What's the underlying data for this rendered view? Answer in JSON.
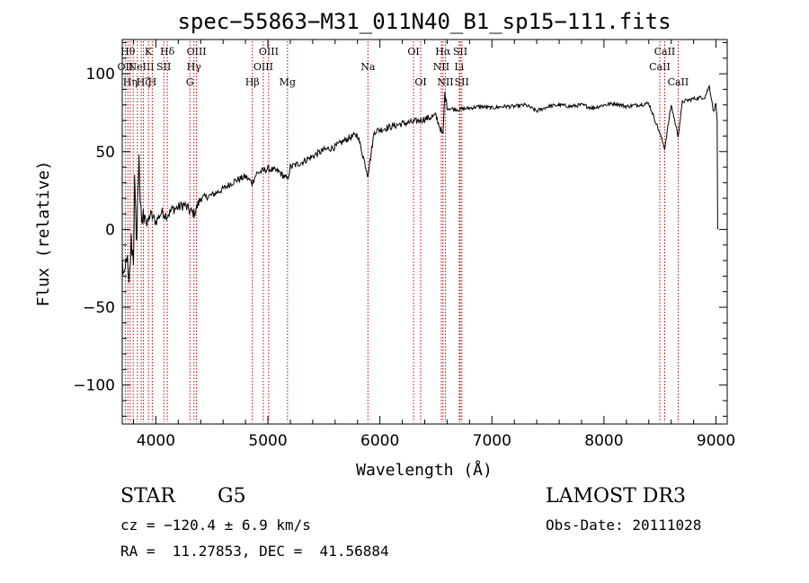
{
  "chart_data": {
    "type": "line",
    "title": "spec−55863−M31_011N40_B1_sp15−111.fits",
    "xlabel": "Wavelength (Å)",
    "ylabel": "Flux (relative)",
    "xlim": [
      3700,
      9100
    ],
    "ylim": [
      -125,
      122
    ],
    "x_ticks": [
      4000,
      5000,
      6000,
      7000,
      8000,
      9000
    ],
    "x_tick_labels": [
      "4000",
      "5000",
      "6000",
      "7000",
      "8000",
      "9000"
    ],
    "y_ticks": [
      -100,
      -50,
      0,
      50,
      100
    ],
    "y_tick_labels": [
      "−100",
      "−50",
      "0",
      "50",
      "100"
    ],
    "series": [
      {
        "name": "spectrum",
        "anchors": [
          [
            3700,
            -20
          ],
          [
            3720,
            -35
          ],
          [
            3740,
            -15
          ],
          [
            3760,
            -40
          ],
          [
            3780,
            -8
          ],
          [
            3800,
            -18
          ],
          [
            3810,
            30
          ],
          [
            3820,
            5
          ],
          [
            3830,
            -5
          ],
          [
            3850,
            52
          ],
          [
            3860,
            10
          ],
          [
            3880,
            5
          ],
          [
            3900,
            12
          ],
          [
            3920,
            2
          ],
          [
            3950,
            10
          ],
          [
            4000,
            5
          ],
          [
            4050,
            11
          ],
          [
            4100,
            9
          ],
          [
            4150,
            13
          ],
          [
            4200,
            14
          ],
          [
            4250,
            16
          ],
          [
            4300,
            12
          ],
          [
            4340,
            10
          ],
          [
            4400,
            20
          ],
          [
            4500,
            22
          ],
          [
            4600,
            26
          ],
          [
            4700,
            31
          ],
          [
            4800,
            34
          ],
          [
            4860,
            30
          ],
          [
            4900,
            36
          ],
          [
            5000,
            39
          ],
          [
            5100,
            37
          ],
          [
            5175,
            32
          ],
          [
            5200,
            40
          ],
          [
            5300,
            43
          ],
          [
            5400,
            47
          ],
          [
            5500,
            51
          ],
          [
            5600,
            53
          ],
          [
            5700,
            58
          ],
          [
            5800,
            61
          ],
          [
            5893,
            35
          ],
          [
            5950,
            63
          ],
          [
            6000,
            64
          ],
          [
            6100,
            66
          ],
          [
            6200,
            68
          ],
          [
            6300,
            69
          ],
          [
            6400,
            71
          ],
          [
            6500,
            73
          ],
          [
            6563,
            60
          ],
          [
            6580,
            88
          ],
          [
            6600,
            78
          ],
          [
            6700,
            77
          ],
          [
            6800,
            78
          ],
          [
            6900,
            79
          ],
          [
            7000,
            78
          ],
          [
            7100,
            79
          ],
          [
            7200,
            79
          ],
          [
            7300,
            80
          ],
          [
            7400,
            76
          ],
          [
            7500,
            79
          ],
          [
            7600,
            80
          ],
          [
            7700,
            79
          ],
          [
            7800,
            80
          ],
          [
            7900,
            78
          ],
          [
            8000,
            80
          ],
          [
            8100,
            81
          ],
          [
            8200,
            79
          ],
          [
            8300,
            80
          ],
          [
            8400,
            81
          ],
          [
            8498,
            62
          ],
          [
            8542,
            52
          ],
          [
            8600,
            80
          ],
          [
            8662,
            60
          ],
          [
            8700,
            82
          ],
          [
            8800,
            84
          ],
          [
            8900,
            85
          ],
          [
            8940,
            92
          ],
          [
            8960,
            84
          ],
          [
            8980,
            75
          ],
          [
            9000,
            82
          ],
          [
            9010,
            70
          ],
          [
            9015,
            0
          ]
        ]
      }
    ],
    "emission_lines": [
      {
        "wavelength": 3727,
        "label": "OII",
        "row": 2
      },
      {
        "wavelength": 3750,
        "label": "Hθ",
        "row": 1
      },
      {
        "wavelength": 3771,
        "label": "Hη",
        "row": 3
      },
      {
        "wavelength": 3798,
        "label": "",
        "row": 0
      },
      {
        "wavelength": 3835,
        "label": "",
        "row": 0
      },
      {
        "wavelength": 3869,
        "label": "NeIII",
        "row": 2
      },
      {
        "wavelength": 3889,
        "label": "Hζ",
        "row": 3
      },
      {
        "wavelength": 3934,
        "label": "K",
        "row": 1
      },
      {
        "wavelength": 3968,
        "label": "H",
        "row": 3
      },
      {
        "wavelength": 4071,
        "label": "SII",
        "row": 2
      },
      {
        "wavelength": 4102,
        "label": "Hδ",
        "row": 1
      },
      {
        "wavelength": 4304,
        "label": "G",
        "row": 3
      },
      {
        "wavelength": 4340,
        "label": "Hγ",
        "row": 2
      },
      {
        "wavelength": 4363,
        "label": "OIII",
        "row": 1
      },
      {
        "wavelength": 4861,
        "label": "Hβ",
        "row": 3
      },
      {
        "wavelength": 4959,
        "label": "OIII",
        "row": 2
      },
      {
        "wavelength": 5007,
        "label": "OIII",
        "row": 1
      },
      {
        "wavelength": 5175,
        "label": "Mg",
        "row": 3
      },
      {
        "wavelength": 5893,
        "label": "Na",
        "row": 2
      },
      {
        "wavelength": 6300,
        "label": "OI",
        "row": 1
      },
      {
        "wavelength": 6364,
        "label": "OI",
        "row": 3
      },
      {
        "wavelength": 6548,
        "label": "NII",
        "row": 2
      },
      {
        "wavelength": 6563,
        "label": "Hα",
        "row": 1
      },
      {
        "wavelength": 6584,
        "label": "NII",
        "row": 3
      },
      {
        "wavelength": 6708,
        "label": "Li",
        "row": 2
      },
      {
        "wavelength": 6717,
        "label": "SII",
        "row": 1
      },
      {
        "wavelength": 6731,
        "label": "SII",
        "row": 3
      },
      {
        "wavelength": 8498,
        "label": "CaII",
        "row": 2
      },
      {
        "wavelength": 8542,
        "label": "CaII",
        "row": 1
      },
      {
        "wavelength": 8662,
        "label": "CaII",
        "row": 3
      }
    ],
    "line_color": "#c00000"
  },
  "info": {
    "class": "STAR",
    "subclass": "G5",
    "survey": "LAMOST DR3",
    "cz": "cz = −120.4 ± 6.9 km/s",
    "obs_date": "Obs-Date: 20111028",
    "coords": "RA =  11.27853, DEC =  41.56884"
  }
}
